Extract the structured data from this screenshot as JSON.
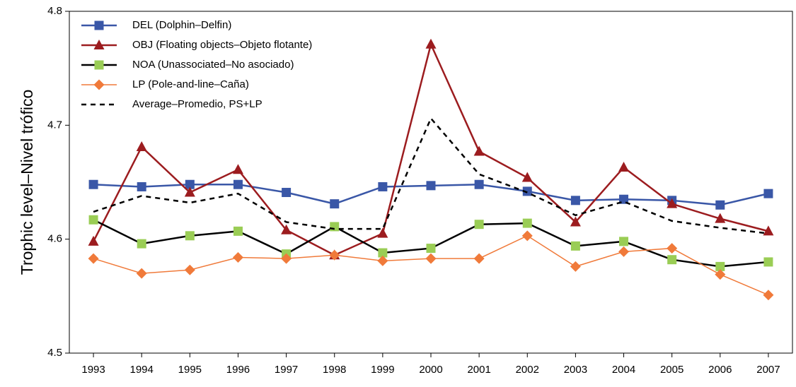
{
  "chart_data": {
    "type": "line",
    "ylabel": "Trophic level–Nivel trófico",
    "categories": [
      "1993",
      "1994",
      "1995",
      "1996",
      "1997",
      "1998",
      "1999",
      "2000",
      "2001",
      "2002",
      "2003",
      "2004",
      "2005",
      "2006",
      "2007"
    ],
    "ylim": [
      4.5,
      4.8
    ],
    "yticks": [
      4.5,
      4.6,
      4.7,
      4.8
    ],
    "grid": false,
    "legend": "upper-left",
    "series": [
      {
        "name": "DEL (Dolphin–Delfin)",
        "color": "#3a57a7",
        "marker": "square",
        "values": [
          4.648,
          4.646,
          4.648,
          4.648,
          4.641,
          4.631,
          4.646,
          4.647,
          4.648,
          4.642,
          4.634,
          4.635,
          4.634,
          4.63,
          4.64
        ]
      },
      {
        "name": "OBJ (Floating objects–Objeto flotante)",
        "color": "#9c1c1f",
        "marker": "triangle",
        "values": [
          4.598,
          4.681,
          4.641,
          4.661,
          4.608,
          4.586,
          4.605,
          4.771,
          4.677,
          4.654,
          4.615,
          4.663,
          4.631,
          4.618,
          4.607
        ]
      },
      {
        "name": "NOA (Unassociated–No asociado)",
        "color": "#000000",
        "marker_color": "#9acd55",
        "marker": "square",
        "values": [
          4.617,
          4.596,
          4.603,
          4.607,
          4.587,
          4.611,
          4.588,
          4.592,
          4.613,
          4.614,
          4.594,
          4.598,
          4.582,
          4.576,
          4.58
        ]
      },
      {
        "name": "LP (Pole-and-line–Caña)",
        "color": "#f07a3a",
        "marker": "diamond",
        "values": [
          4.583,
          4.57,
          4.573,
          4.584,
          4.583,
          4.586,
          4.581,
          4.583,
          4.583,
          4.603,
          4.576,
          4.589,
          4.592,
          4.569,
          4.551
        ]
      },
      {
        "name": "Average–Promedio, PS+LP",
        "color": "#000000",
        "dash": true,
        "values": [
          4.624,
          4.638,
          4.632,
          4.64,
          4.615,
          4.609,
          4.609,
          4.706,
          4.657,
          4.641,
          4.621,
          4.633,
          4.616,
          4.61,
          4.605
        ]
      }
    ]
  }
}
